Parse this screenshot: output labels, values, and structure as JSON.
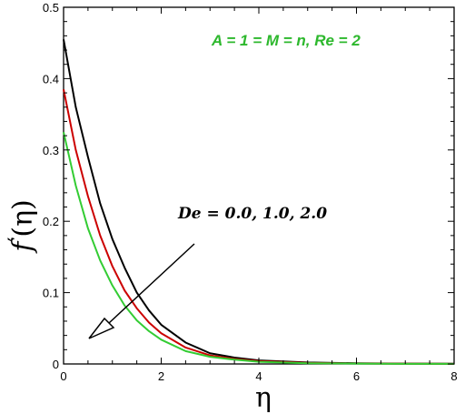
{
  "chart_data": {
    "type": "line",
    "xlabel": "η",
    "ylabel_main": "f",
    "ylabel_prime": "′",
    "ylabel_arg": "(η)",
    "xlim": [
      0,
      8
    ],
    "ylim": [
      0,
      0.5
    ],
    "x_ticks": [
      0,
      2,
      4,
      6,
      8
    ],
    "y_ticks": [
      0,
      0.1,
      0.2,
      0.3,
      0.4,
      0.5
    ],
    "y_tick_labels": [
      "0",
      "0.1",
      "0.2",
      "0.3",
      "0.4",
      "0.5"
    ],
    "grid": false,
    "parameter_annotation": "A = 1 = M = n, Re = 2",
    "parameter_annotation_color": "#2db82d",
    "arrow_annotation": "De = 0.0, 1.0, 2.0",
    "series": [
      {
        "color": "#000000",
        "x": [
          0,
          0.25,
          0.5,
          0.75,
          1.0,
          1.25,
          1.5,
          1.75,
          2.0,
          2.5,
          3.0,
          3.5,
          4.0,
          5.0,
          6.0,
          7.0,
          8.0
        ],
        "values": [
          0.455,
          0.36,
          0.29,
          0.225,
          0.175,
          0.135,
          0.1,
          0.075,
          0.055,
          0.03,
          0.015,
          0.009,
          0.005,
          0.002,
          0.001,
          0.0005,
          0.0003
        ]
      },
      {
        "color": "#cc0000",
        "x": [
          0,
          0.25,
          0.5,
          0.75,
          1.0,
          1.25,
          1.5,
          1.75,
          2.0,
          2.5,
          3.0,
          3.5,
          4.0,
          5.0,
          6.0,
          7.0,
          8.0
        ],
        "values": [
          0.385,
          0.3,
          0.235,
          0.18,
          0.137,
          0.103,
          0.078,
          0.058,
          0.043,
          0.023,
          0.012,
          0.007,
          0.004,
          0.0015,
          0.0007,
          0.0003,
          0.0002
        ]
      },
      {
        "color": "#33cc33",
        "x": [
          0,
          0.25,
          0.5,
          0.75,
          1.0,
          1.25,
          1.5,
          1.75,
          2.0,
          2.5,
          3.0,
          3.5,
          4.0,
          5.0,
          6.0,
          7.0,
          8.0
        ],
        "values": [
          0.325,
          0.25,
          0.19,
          0.145,
          0.11,
          0.082,
          0.061,
          0.046,
          0.034,
          0.018,
          0.01,
          0.006,
          0.003,
          0.001,
          0.0005,
          0.0002,
          0.0001
        ]
      }
    ]
  }
}
